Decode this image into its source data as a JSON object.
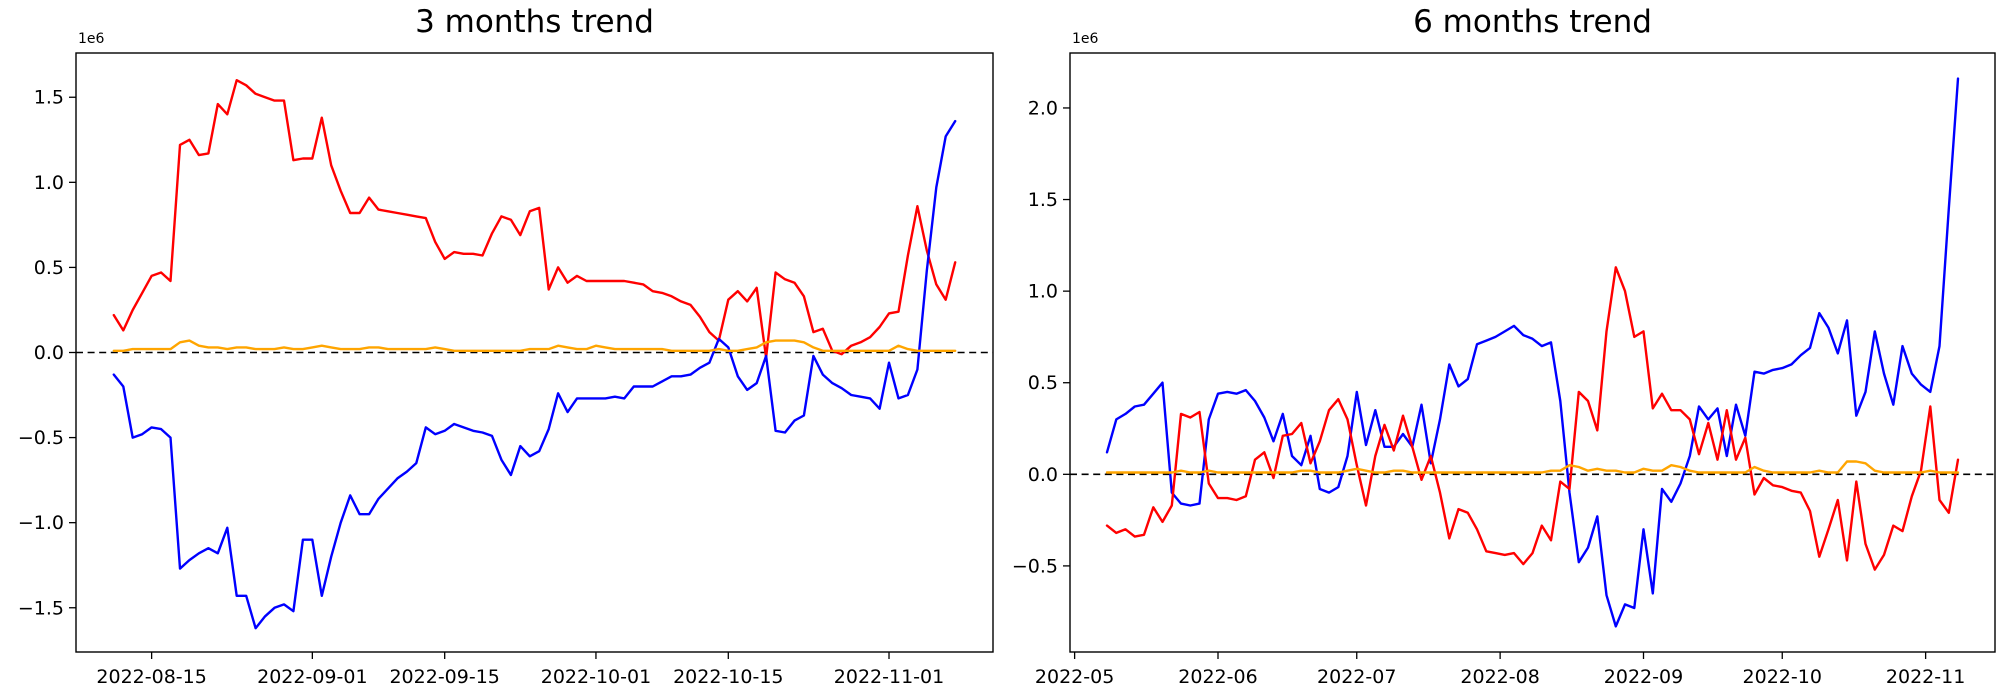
{
  "figure": {
    "background": "#ffffff"
  },
  "chart_data": [
    {
      "type": "line",
      "title": "3 months trend",
      "offset_label": "1e6",
      "xlabel": "",
      "ylabel": "",
      "grid": false,
      "legend": null,
      "zero_line": true,
      "y_unit_multiplier": 1000000,
      "ylim": [
        -1.76,
        1.76
      ],
      "yticks": [
        1.5,
        1.0,
        0.5,
        0.0,
        -0.5,
        -1.0,
        -1.5
      ],
      "xlim": [
        "2022-08-07",
        "2022-11-12"
      ],
      "xticks": [
        {
          "date": "2022-08-15",
          "label": "2022-08-15"
        },
        {
          "date": "2022-09-01",
          "label": "2022-09-01"
        },
        {
          "date": "2022-09-15",
          "label": "2022-09-15"
        },
        {
          "date": "2022-10-01",
          "label": "2022-10-01"
        },
        {
          "date": "2022-10-15",
          "label": "2022-10-15"
        },
        {
          "date": "2022-11-01",
          "label": "2022-11-01"
        }
      ],
      "series": [
        {
          "name": "red-line",
          "color": "#ff0000",
          "start_date": "2022-08-11",
          "step_days": 1,
          "values": [
            0.22,
            0.13,
            0.25,
            0.35,
            0.45,
            0.47,
            0.42,
            1.22,
            1.25,
            1.16,
            1.17,
            1.46,
            1.4,
            1.6,
            1.57,
            1.52,
            1.5,
            1.48,
            1.48,
            1.13,
            1.14,
            1.14,
            1.38,
            1.1,
            0.95,
            0.82,
            0.82,
            0.91,
            0.84,
            0.83,
            0.82,
            0.81,
            0.8,
            0.79,
            0.65,
            0.55,
            0.59,
            0.58,
            0.58,
            0.57,
            0.7,
            0.8,
            0.78,
            0.69,
            0.83,
            0.85,
            0.37,
            0.5,
            0.41,
            0.45,
            0.42,
            0.42,
            0.42,
            0.42,
            0.42,
            0.41,
            0.4,
            0.36,
            0.35,
            0.33,
            0.3,
            0.28,
            0.21,
            0.12,
            0.07,
            0.31,
            0.36,
            0.3,
            0.38,
            -0.03,
            0.47,
            0.43,
            0.41,
            0.33,
            0.12,
            0.14,
            0.01,
            -0.01,
            0.04,
            0.06,
            0.09,
            0.15,
            0.23,
            0.24,
            0.57,
            0.86,
            0.6,
            0.4,
            0.31,
            0.53
          ]
        },
        {
          "name": "blue-line",
          "color": "#0000ff",
          "start_date": "2022-08-11",
          "step_days": 1,
          "values": [
            -0.13,
            -0.2,
            -0.5,
            -0.48,
            -0.44,
            -0.45,
            -0.5,
            -1.27,
            -1.22,
            -1.18,
            -1.15,
            -1.18,
            -1.03,
            -1.43,
            -1.43,
            -1.62,
            -1.55,
            -1.5,
            -1.48,
            -1.52,
            -1.1,
            -1.1,
            -1.43,
            -1.2,
            -1.0,
            -0.84,
            -0.95,
            -0.95,
            -0.86,
            -0.8,
            -0.74,
            -0.7,
            -0.65,
            -0.44,
            -0.48,
            -0.46,
            -0.42,
            -0.44,
            -0.46,
            -0.47,
            -0.49,
            -0.63,
            -0.72,
            -0.55,
            -0.61,
            -0.58,
            -0.45,
            -0.24,
            -0.35,
            -0.27,
            -0.27,
            -0.27,
            -0.27,
            -0.26,
            -0.27,
            -0.2,
            -0.2,
            -0.2,
            -0.17,
            -0.14,
            -0.14,
            -0.13,
            -0.09,
            -0.06,
            0.08,
            0.03,
            -0.14,
            -0.22,
            -0.18,
            -0.02,
            -0.46,
            -0.47,
            -0.4,
            -0.37,
            -0.02,
            -0.13,
            -0.18,
            -0.21,
            -0.25,
            -0.26,
            -0.27,
            -0.33,
            -0.06,
            -0.27,
            -0.25,
            -0.1,
            0.48,
            0.97,
            1.27,
            1.36
          ]
        },
        {
          "name": "orange-line",
          "color": "#ffa500",
          "start_date": "2022-08-11",
          "step_days": 1,
          "values": [
            0.01,
            0.01,
            0.02,
            0.02,
            0.02,
            0.02,
            0.02,
            0.06,
            0.07,
            0.04,
            0.03,
            0.03,
            0.02,
            0.03,
            0.03,
            0.02,
            0.02,
            0.02,
            0.03,
            0.02,
            0.02,
            0.03,
            0.04,
            0.03,
            0.02,
            0.02,
            0.02,
            0.03,
            0.03,
            0.02,
            0.02,
            0.02,
            0.02,
            0.02,
            0.03,
            0.02,
            0.01,
            0.01,
            0.01,
            0.01,
            0.01,
            0.01,
            0.01,
            0.01,
            0.02,
            0.02,
            0.02,
            0.04,
            0.03,
            0.02,
            0.02,
            0.04,
            0.03,
            0.02,
            0.02,
            0.02,
            0.02,
            0.02,
            0.02,
            0.01,
            0.01,
            0.01,
            0.01,
            0.01,
            0.02,
            0.01,
            0.01,
            0.02,
            0.03,
            0.06,
            0.07,
            0.07,
            0.07,
            0.06,
            0.03,
            0.01,
            0.01,
            0.01,
            0.01,
            0.01,
            0.01,
            0.01,
            0.01,
            0.04,
            0.02,
            0.01,
            0.01,
            0.01,
            0.01,
            0.01
          ]
        }
      ]
    },
    {
      "type": "line",
      "title": "6 months trend",
      "offset_label": "1e6",
      "xlabel": "",
      "ylabel": "",
      "grid": false,
      "legend": null,
      "zero_line": true,
      "y_unit_multiplier": 1000000,
      "ylim": [
        -0.97,
        2.3
      ],
      "yticks": [
        2.0,
        1.5,
        1.0,
        0.5,
        0.0,
        -0.5
      ],
      "xlim": [
        "2022-04-30",
        "2022-11-16"
      ],
      "xticks": [
        {
          "date": "2022-05-01",
          "label": "2022-05"
        },
        {
          "date": "2022-06-01",
          "label": "2022-06"
        },
        {
          "date": "2022-07-01",
          "label": "2022-07"
        },
        {
          "date": "2022-08-01",
          "label": "2022-08"
        },
        {
          "date": "2022-09-01",
          "label": "2022-09"
        },
        {
          "date": "2022-10-01",
          "label": "2022-10"
        },
        {
          "date": "2022-11-01",
          "label": "2022-11"
        }
      ],
      "series": [
        {
          "name": "blue-line",
          "color": "#0000ff",
          "start_date": "2022-05-08",
          "step_days": 2,
          "values": [
            0.12,
            0.3,
            0.33,
            0.37,
            0.38,
            0.44,
            0.5,
            -0.1,
            -0.16,
            -0.17,
            -0.16,
            0.3,
            0.44,
            0.45,
            0.44,
            0.46,
            0.4,
            0.31,
            0.18,
            0.33,
            0.1,
            0.05,
            0.21,
            -0.08,
            -0.1,
            -0.07,
            0.1,
            0.45,
            0.16,
            0.35,
            0.15,
            0.15,
            0.22,
            0.15,
            0.38,
            0.06,
            0.3,
            0.6,
            0.48,
            0.52,
            0.71,
            0.73,
            0.75,
            0.78,
            0.81,
            0.76,
            0.74,
            0.7,
            0.72,
            0.4,
            -0.1,
            -0.48,
            -0.4,
            -0.23,
            -0.66,
            -0.83,
            -0.71,
            -0.73,
            -0.3,
            -0.65,
            -0.08,
            -0.15,
            -0.05,
            0.1,
            0.37,
            0.3,
            0.36,
            0.1,
            0.38,
            0.21,
            0.56,
            0.55,
            0.57,
            0.58,
            0.6,
            0.65,
            0.69,
            0.88,
            0.8,
            0.66,
            0.84,
            0.32,
            0.45,
            0.78,
            0.55,
            0.38,
            0.7,
            0.55,
            0.49,
            0.45,
            0.7,
            1.45,
            2.16
          ]
        },
        {
          "name": "red-line",
          "color": "#ff0000",
          "start_date": "2022-05-08",
          "step_days": 2,
          "values": [
            -0.28,
            -0.32,
            -0.3,
            -0.34,
            -0.33,
            -0.18,
            -0.26,
            -0.17,
            0.33,
            0.31,
            0.34,
            -0.05,
            -0.13,
            -0.13,
            -0.14,
            -0.12,
            0.08,
            0.12,
            -0.02,
            0.21,
            0.22,
            0.28,
            0.06,
            0.18,
            0.35,
            0.41,
            0.3,
            0.05,
            -0.17,
            0.1,
            0.27,
            0.13,
            0.32,
            0.15,
            -0.03,
            0.1,
            -0.1,
            -0.35,
            -0.19,
            -0.21,
            -0.3,
            -0.42,
            -0.43,
            -0.44,
            -0.43,
            -0.49,
            -0.43,
            -0.28,
            -0.36,
            -0.04,
            -0.08,
            0.45,
            0.4,
            0.24,
            0.78,
            1.13,
            1.0,
            0.75,
            0.78,
            0.36,
            0.44,
            0.35,
            0.35,
            0.3,
            0.11,
            0.28,
            0.08,
            0.35,
            0.08,
            0.2,
            -0.11,
            -0.02,
            -0.06,
            -0.07,
            -0.09,
            -0.1,
            -0.2,
            -0.45,
            -0.3,
            -0.14,
            -0.47,
            -0.04,
            -0.38,
            -0.52,
            -0.44,
            -0.28,
            -0.31,
            -0.12,
            0.02,
            0.37,
            -0.14,
            -0.21,
            0.08
          ]
        },
        {
          "name": "orange-line",
          "color": "#ffa500",
          "start_date": "2022-05-08",
          "step_days": 2,
          "values": [
            0.01,
            0.01,
            0.01,
            0.01,
            0.01,
            0.01,
            0.01,
            0.01,
            0.02,
            0.01,
            0.01,
            0.02,
            0.01,
            0.01,
            0.01,
            0.01,
            0.01,
            0.01,
            0.01,
            0.01,
            0.01,
            0.02,
            0.02,
            0.01,
            0.01,
            0.01,
            0.02,
            0.03,
            0.02,
            0.01,
            0.01,
            0.02,
            0.02,
            0.01,
            0.01,
            0.01,
            0.01,
            0.01,
            0.01,
            0.01,
            0.01,
            0.01,
            0.01,
            0.01,
            0.01,
            0.01,
            0.01,
            0.01,
            0.02,
            0.02,
            0.05,
            0.04,
            0.02,
            0.03,
            0.02,
            0.02,
            0.01,
            0.01,
            0.03,
            0.02,
            0.02,
            0.05,
            0.04,
            0.02,
            0.01,
            0.01,
            0.01,
            0.01,
            0.01,
            0.01,
            0.04,
            0.02,
            0.01,
            0.01,
            0.01,
            0.01,
            0.01,
            0.02,
            0.01,
            0.01,
            0.07,
            0.07,
            0.06,
            0.02,
            0.01,
            0.01,
            0.01,
            0.01,
            0.01,
            0.02,
            0.01,
            0.01,
            0.01
          ]
        }
      ]
    }
  ]
}
